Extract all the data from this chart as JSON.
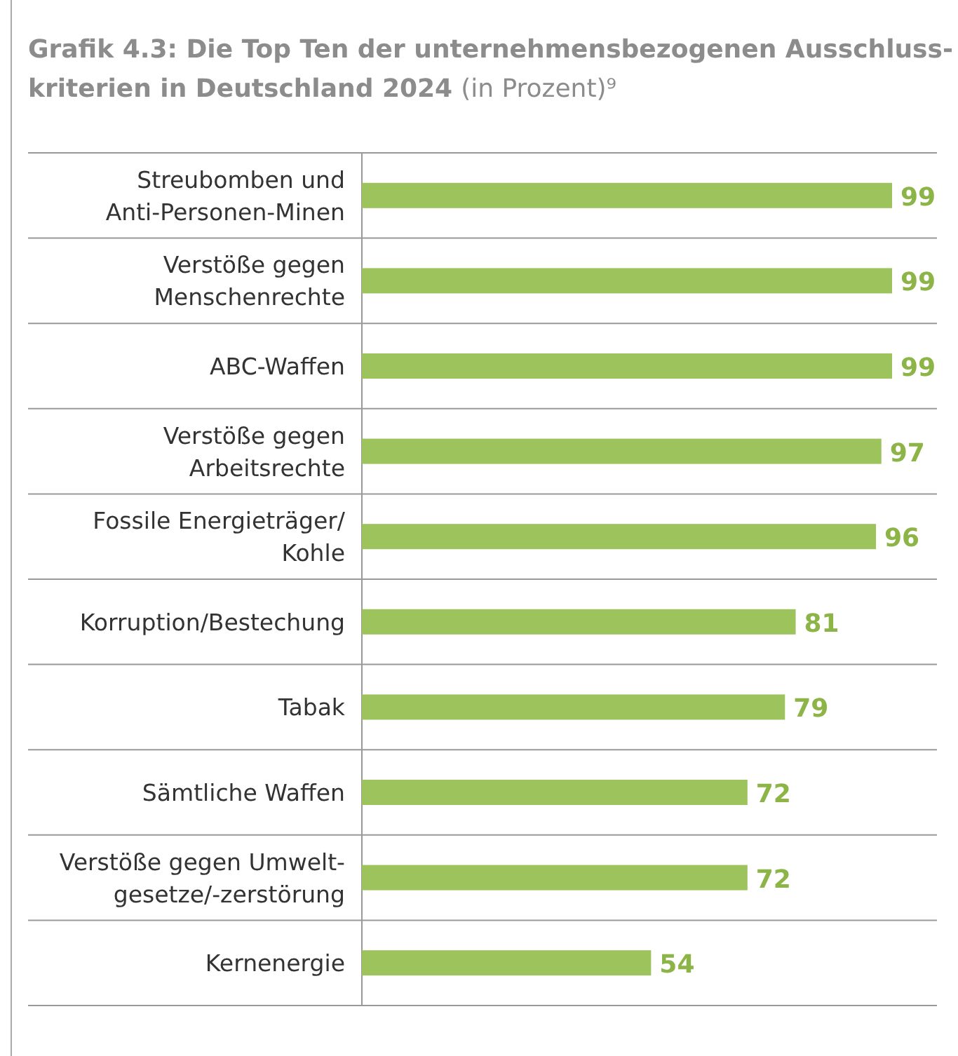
{
  "chart_data": {
    "type": "bar",
    "orientation": "horizontal",
    "title": "Grafik 4.3: Die Top Ten der unternehmensbezogenen Ausschluss-\nkriterien in Deutschland 2024",
    "subtitle": "(in Prozent)⁹",
    "categories": [
      "Streubomben und\nAnti-Personen-Minen",
      "Verstöße gegen\nMenschenrechte",
      "ABC-Waffen",
      "Verstöße gegen\nArbeitsrechte",
      "Fossile Energieträger/\nKohle",
      "Korruption/Bestechung",
      "Tabak",
      "Sämtliche Waffen",
      "Verstöße gegen Umwelt-\ngesetze/-zerstörung",
      "Kernenergie"
    ],
    "values": [
      99,
      99,
      99,
      97,
      96,
      81,
      79,
      72,
      72,
      54
    ],
    "color": "#9dc35c",
    "data_labels": true
  }
}
